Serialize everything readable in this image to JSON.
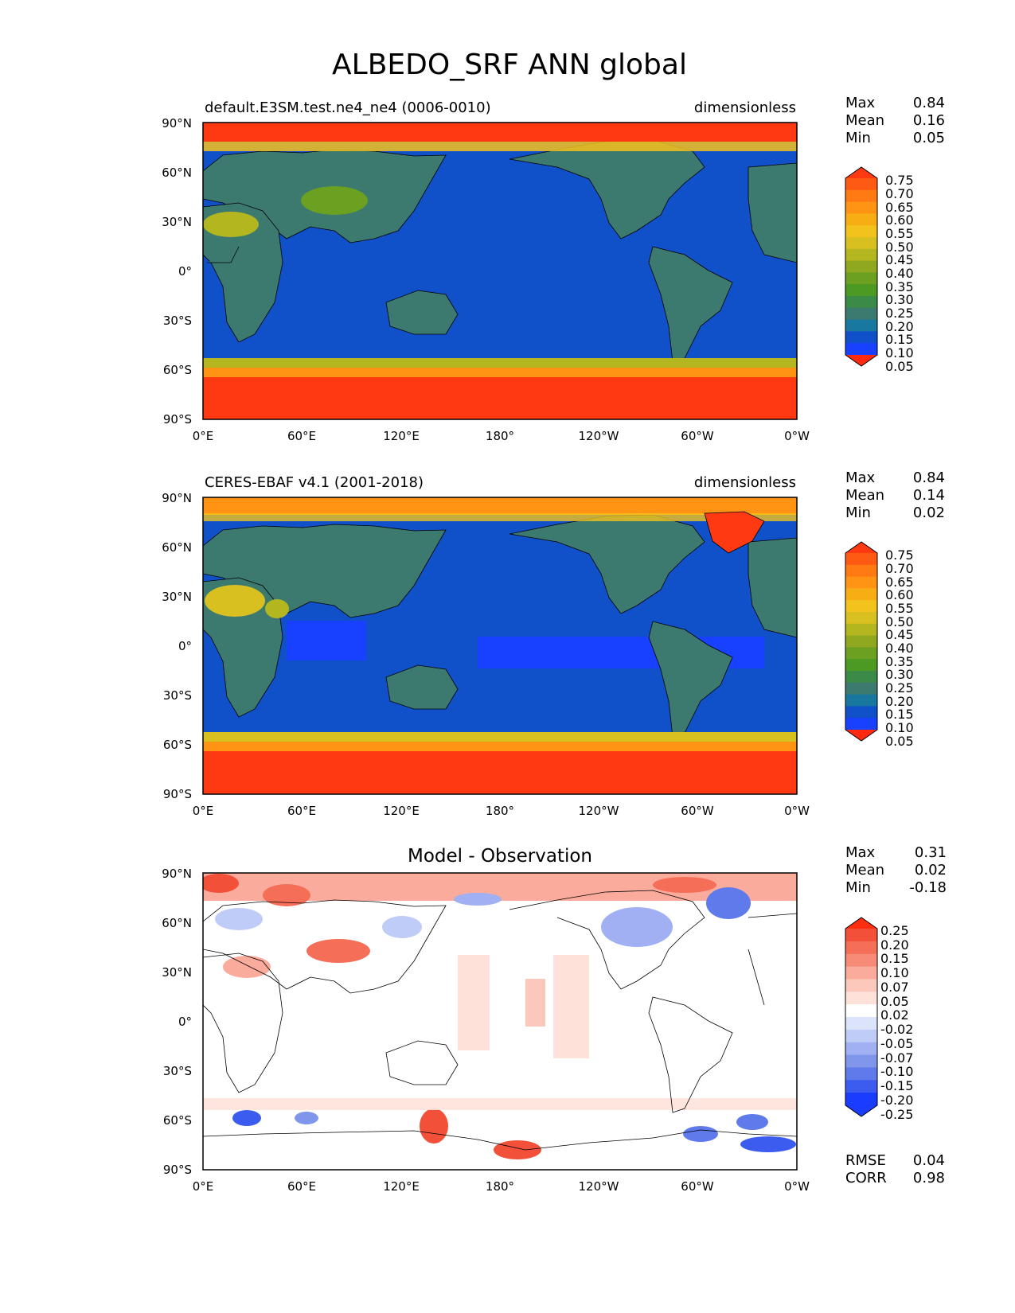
{
  "figure": {
    "title": "ALBEDO_SRF ANN global"
  },
  "chart_data": [
    {
      "type": "heatmap",
      "kind": "map",
      "panel": "test",
      "title": "default.E3SM.test.ne4_ne4 (0006-0010)",
      "units": "dimensionless",
      "stats": [
        [
          "Max",
          "0.84"
        ],
        [
          "Mean",
          "0.16"
        ],
        [
          "Min",
          "0.05"
        ]
      ],
      "colorbar_ticks": [
        "0.75",
        "0.70",
        "0.65",
        "0.60",
        "0.55",
        "0.50",
        "0.45",
        "0.40",
        "0.35",
        "0.30",
        "0.25",
        "0.20",
        "0.15",
        "0.10",
        "0.05"
      ],
      "colorbar_colors": [
        "#ff3a12",
        "#ff5a14",
        "#ff7a12",
        "#ff9414",
        "#f7ad14",
        "#f4c21c",
        "#d8c020",
        "#b4b620",
        "#90a820",
        "#6ca020",
        "#4c9a24",
        "#3c8a48",
        "#3c7a70",
        "#1878a0",
        "#1050c8",
        "#1840ff",
        "#ff2a10"
      ],
      "x_ticks": [
        "0°E",
        "60°E",
        "120°E",
        "180°",
        "120°W",
        "60°W",
        "0°W"
      ],
      "y_ticks": [
        "90°N",
        "60°N",
        "30°N",
        "0°",
        "30°S",
        "60°S",
        "90°S"
      ],
      "ocean_value": 0.08,
      "land_value": 0.18
    },
    {
      "type": "heatmap",
      "kind": "map",
      "panel": "reference",
      "title": "CERES-EBAF v4.1 (2001-2018)",
      "units": "dimensionless",
      "stats": [
        [
          "Max",
          "0.84"
        ],
        [
          "Mean",
          "0.14"
        ],
        [
          "Min",
          "0.02"
        ]
      ],
      "colorbar_ticks": [
        "0.75",
        "0.70",
        "0.65",
        "0.60",
        "0.55",
        "0.50",
        "0.45",
        "0.40",
        "0.35",
        "0.30",
        "0.25",
        "0.20",
        "0.15",
        "0.10",
        "0.05"
      ],
      "x_ticks": [
        "0°E",
        "60°E",
        "120°E",
        "180°",
        "120°W",
        "60°W",
        "0°W"
      ],
      "y_ticks": [
        "90°N",
        "60°N",
        "30°N",
        "0°",
        "30°S",
        "60°S",
        "90°S"
      ],
      "ocean_value": 0.08,
      "land_value": 0.18
    },
    {
      "type": "heatmap",
      "kind": "map",
      "panel": "difference",
      "title": "Model - Observation",
      "units": "",
      "stats": [
        [
          "Max",
          "0.31"
        ],
        [
          "Mean",
          "0.02"
        ],
        [
          "Min",
          "-0.18"
        ]
      ],
      "colorbar_ticks": [
        "0.25",
        "0.20",
        "0.15",
        "0.10",
        "0.07",
        "0.05",
        "0.02",
        "-0.02",
        "-0.05",
        "-0.07",
        "-0.10",
        "-0.15",
        "-0.20",
        "-0.25"
      ],
      "colorbar_colors": [
        "#ff2e10",
        "#f25038",
        "#f46e58",
        "#f88a78",
        "#fbab9c",
        "#fdc8bc",
        "#fee2da",
        "#ffffff",
        "#dce4fb",
        "#c0ccf8",
        "#a0b0f2",
        "#8096ea",
        "#5f7aea",
        "#3c5cf0",
        "#1a3cff",
        "#1a3cff"
      ],
      "x_ticks": [
        "0°E",
        "60°E",
        "120°E",
        "180°",
        "120°W",
        "60°W",
        "0°W"
      ],
      "y_ticks": [
        "90°N",
        "60°N",
        "30°N",
        "0°",
        "30°S",
        "60°S",
        "90°S"
      ],
      "metrics": [
        [
          "RMSE",
          "0.04"
        ],
        [
          "CORR",
          "0.98"
        ]
      ]
    }
  ]
}
